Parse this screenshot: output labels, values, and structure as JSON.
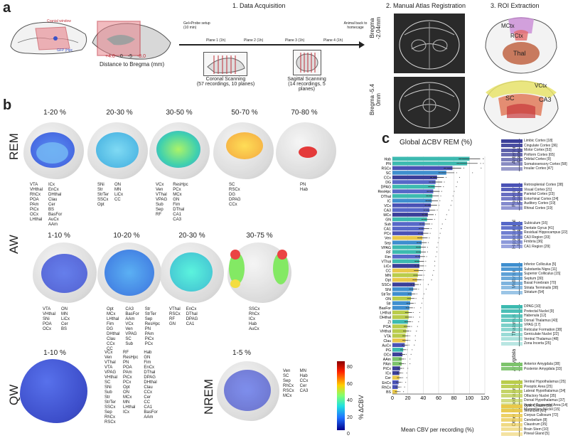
{
  "panels": {
    "a": "a",
    "b": "b",
    "c": "c"
  },
  "panel_a": {
    "cranial_window": "Cranial window",
    "gfp_label": "GFP (Hpc",
    "distance_ticks": [
      "+4.0",
      "0",
      "-5",
      "-8.0"
    ],
    "distance_label": "Distance to Bregma (mm)",
    "section1_title": "1. Data Acquisition",
    "section2_title": "2. Manual Atlas Registration",
    "section3_title": "3. ROI Extraction",
    "setup_label": "Gel+Probe setup",
    "setup_sub": "(10 min)",
    "planes": [
      "Plane 1 (1h)",
      "Plane 2 (1h)",
      "Plane 3 (1h)",
      "Plane 4 (1h)"
    ],
    "homecage": "Animal back to homecage",
    "coronal_title": "Coronal Scanning",
    "coronal_sub": "(57 recordings, 10 planes)",
    "sagittal_title": "Sagittal Scanning",
    "sagittal_sub": "(14 recordings, 5 planes)",
    "bregma1": "Bregma -2.04mm",
    "bregma2": "Bregma -5.4 0mm",
    "roi_labels": [
      "MCtx",
      "RCtx",
      "Thal",
      "VCtx",
      "SC",
      "CA3"
    ]
  },
  "panel_b": {
    "rem_label": "REM",
    "aw_label": "AW",
    "qw_label": "QW",
    "nrem_label": "NREM",
    "colorbar_title": "% ΔCBV",
    "colorbar_ticks": [
      "80",
      "60",
      "40",
      "20",
      "0"
    ],
    "rem": [
      {
        "pct": "1-20 %",
        "cols": [
          "VTA\nVHthal\nRhCx\nPOA\nPAm\nPiCx\nOCx\nLHthal",
          "ICx\nEnCx\nDHthal\nClau\nCer\nBS\nBasFor\nAuCx\nAAm"
        ]
      },
      {
        "pct": "20-30 %",
        "cols": [
          "SNi\nStr\nStrTer\nSSCx\nOpt",
          "ON\nMN\nLiCx\nCC"
        ]
      },
      {
        "pct": "30-50 %",
        "cols": [
          "VCx\nVen\nVThal\nVPAG\nSub\nSep\nRF",
          "ResHpc\nPCx\nMCx\nGN\nFim\nDThal\nCA1\nCA3"
        ]
      },
      {
        "pct": "50-70 %",
        "cols": [
          "SC\nRSCx\nDG\nDPAG\nCCx"
        ]
      },
      {
        "pct": "70-80 %",
        "cols": [
          "PN\nHab"
        ]
      }
    ],
    "aw": [
      {
        "pct": "1-10 %",
        "cols": [
          "VTA\nVHthal\nSNi\nPOA\nOCx",
          "ON\nMN\nLiCx\nCer\nBS"
        ]
      },
      {
        "pct": "10-20 %",
        "cols": [
          "Opt\nMCx\nLHthal\nFim\nDG\nDHthal\nClau\nCCx\nCC",
          "CA3\nBasFor\nAAm\nVCx\nVen\nVPAG\nSC\nSub",
          "Str\nStrTer\nSep\nResHpc\nPN\nPAm\nPiCx\nPCx"
        ]
      },
      {
        "pct": "20-30 %",
        "cols": [
          "VThal\nRSCx\nRF\nGN",
          "EnCx\nDThal\nDPAG\nCA1"
        ]
      },
      {
        "pct": "30-75 %",
        "cols": [
          "SSCx\nRhCx\nICx\nHab\nAuCx"
        ]
      }
    ],
    "qw": {
      "pct": "1-10 %",
      "cols": [
        "VCx\nVen\nVThal\nVTA\nVPAG\nVHthal\nSC\nSNi\nSub\nStr\nStrTer\nSSCx\nSep\nRhCx\nRSCx",
        "RF\nResHpc\nPN\nPOA\nPAm\nPiCx\nPCx\nOpt\nON\nMCx\nMN\nLHthal\nICx",
        "Hab\nGN\nFim\nEnCx\nDThal\nDPAG\nDHthal\nClau\nCCx\nCer\nCC\nCA1\nBasFor\nAAm"
      ]
    },
    "nrem": {
      "pct": "1-5 %",
      "cols": [
        "Ven\nSC\nSep\nRhCx\nRSCx\nMCx",
        "MN\nHab\nCCx\nCer\nCA3"
      ]
    }
  },
  "panel_c": {
    "chart_title": "Global ΔCBV REM (%)",
    "x_label": "Mean CBV per recording (%)",
    "x_ticks": [
      "0",
      "20",
      "40",
      "60",
      "80",
      "100",
      "120"
    ],
    "groups": [
      {
        "name": "Anterior Cortex",
        "color": "#3b3f99",
        "items": [
          "Limbic Cortex [18]",
          "Cingulate Cortex [36]",
          "Motor Cortex [53]",
          "Piriform Cortex [65]",
          "Orbital Cortex [9]",
          "Somatosensory Cortex [58]",
          "Insular Cortex [47]"
        ]
      },
      {
        "name": "Posterior Cortex",
        "color": "#4a52b5",
        "items": [
          "Retrosplenial Cortex [38]",
          "Visual Cortex [21]",
          "Parietal Cortex [23]",
          "Entorhinal Cortex [24]",
          "Auditory Cortex [19]",
          "Rhinal Cortex [19]"
        ]
      },
      {
        "name": "Hippocampal Formation",
        "color": "#5668c8",
        "items": [
          "Subiculum [16]",
          "Dentate Gyrus [41]",
          "Residual Hippocampus [22]",
          "CA3 Region [33]",
          "Fimbria [36]",
          "CA1 Region [29]"
        ]
      },
      {
        "name": "Midbrain",
        "color": "#3f8fcf",
        "items": [
          "Inferior Colliculus [5]",
          "Substantia Nigra [11]",
          "Superior Colliculus [15]",
          "Septum [30]",
          "Basal Forebrain [70]",
          "Striata Terminalis [38]",
          "Striatum [54]"
        ]
      },
      {
        "name": "Thalamus",
        "color": "#3dbab0",
        "items": [
          "DPAG [10]",
          "Pretectal Nuclei [9]",
          "Habenula [12]",
          "Dorsal Thalamus [43]",
          "VPAG [17]",
          "Reticular Formation [38]",
          "Geniculate Nuclei [22]",
          "Ventral Thalamus [48]",
          "Zona Incerta [25]"
        ]
      },
      {
        "name": "Amygdala",
        "color": "#7cc36b",
        "items": [
          "Anterior Amygdala [38]",
          "Posterior Amygdala [33]"
        ]
      },
      {
        "name": "Hypothalamus",
        "color": "#b9cc4a",
        "items": [
          "Ventral Hypothalamus [25]",
          "Preoptic Area [25]",
          "Lateral Hypothalamus [34]",
          "Olfactory Nuclei [35]",
          "Dorsal Hypothalamus [37]",
          "Ventral Tegmental Area [14]",
          "Mammillary Nuclei [15]"
        ]
      },
      {
        "name": "Other",
        "color": "#e9c84a",
        "items": [
          "Optic Chiasm [53]",
          "Ventricles [60]",
          "Corpus Callosum [72]",
          "Cerebellum [8]",
          "Claustrum [35]",
          "Brain Stem [10]",
          "Pineal Gland [5]"
        ]
      }
    ]
  },
  "chart_data": {
    "type": "bar",
    "title": "Global ΔCBV REM (%)",
    "xlabel": "Mean CBV per recording (%)",
    "xlim": [
      0,
      120
    ],
    "categories": [
      "Hab",
      "PN",
      "RSCx",
      "SC",
      "CCx",
      "DG",
      "DPAG",
      "ResHpc",
      "DThal",
      "IC",
      "VCx",
      "CA3",
      "MCx",
      "GN",
      "Sub",
      "CA1",
      "PCx",
      "Ven",
      "Sep",
      "VPAG",
      "RF",
      "Fim",
      "VThal",
      "LiCx",
      "CC",
      "MN",
      "Opt",
      "SSCx",
      "SNi",
      "StrTer",
      "ON",
      "Str",
      "BasFor",
      "LHthal",
      "DHthal",
      "ZI",
      "POA",
      "VHthal",
      "VTA",
      "Clau",
      "AuCx",
      "PG",
      "OCx",
      "AAm",
      "PAm",
      "PiCx",
      "ICx",
      "Cer",
      "EnCx",
      "RhCx",
      "BS"
    ],
    "values": [
      100,
      97,
      78,
      70,
      58,
      56,
      55,
      53,
      52,
      51,
      50,
      48,
      46,
      45,
      42,
      41,
      40,
      39,
      38,
      37,
      37,
      36,
      35,
      35,
      34,
      33,
      32,
      29,
      27,
      25,
      24,
      23,
      22,
      21,
      21,
      20,
      19,
      18,
      17,
      17,
      16,
      14,
      13,
      12,
      12,
      10,
      9,
      9,
      8,
      7,
      6
    ],
    "colors": [
      "#3dbab0",
      "#3dbab0",
      "#4a52b5",
      "#3f8fcf",
      "#3b3f99",
      "#5668c8",
      "#3dbab0",
      "#5668c8",
      "#3dbab0",
      "#3f8fcf",
      "#4a52b5",
      "#5668c8",
      "#3b3f99",
      "#3dbab0",
      "#5668c8",
      "#5668c8",
      "#4a52b5",
      "#e9c84a",
      "#3f8fcf",
      "#3dbab0",
      "#3dbab0",
      "#5668c8",
      "#3dbab0",
      "#3b3f99",
      "#e9c84a",
      "#b9cc4a",
      "#e9c84a",
      "#3b3f99",
      "#3f8fcf",
      "#3f8fcf",
      "#b9cc4a",
      "#3f8fcf",
      "#3f8fcf",
      "#b9cc4a",
      "#b9cc4a",
      "#3dbab0",
      "#b9cc4a",
      "#b9cc4a",
      "#b9cc4a",
      "#e9c84a",
      "#4a52b5",
      "#3dbab0",
      "#3b3f99",
      "#7cc36b",
      "#7cc36b",
      "#3b3f99",
      "#3b3f99",
      "#e9c84a",
      "#4a52b5",
      "#4a52b5",
      "#e9c84a"
    ]
  }
}
